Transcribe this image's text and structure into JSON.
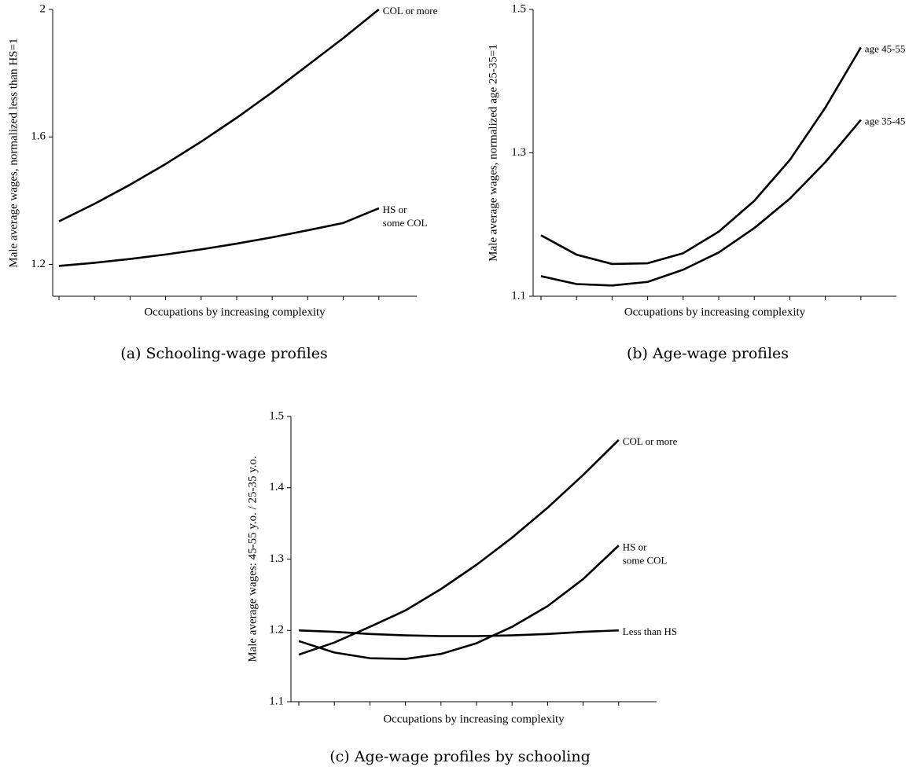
{
  "chart_data": [
    {
      "type": "line",
      "caption": "(a) Schooling-wage profiles",
      "x_label": "Occupations by increasing complexity",
      "y_label": "Male average wages, normalized less than HS=1",
      "categories": [
        null,
        null,
        null,
        null,
        null,
        null,
        null,
        null,
        null,
        null
      ],
      "series": [
        {
          "name": "COL or more",
          "color": "#000000",
          "values": [
            1.335,
            1.39,
            1.45,
            1.515,
            1.585,
            1.66,
            1.74,
            1.825,
            1.91,
            2.0
          ]
        },
        {
          "name": "HS or\nsome COL",
          "color": "#000000",
          "values": [
            1.195,
            1.205,
            1.217,
            1.231,
            1.247,
            1.265,
            1.285,
            1.307,
            1.33,
            1.376
          ]
        }
      ],
      "ylim": [
        1.1,
        2
      ],
      "yticks": [
        1.2,
        1.6,
        2
      ]
    },
    {
      "type": "line",
      "caption": "(b) Age-wage profiles",
      "x_label": "Occupations by increasing complexity",
      "y_label": "Male average wages, normalized age 25-35=1",
      "categories": [
        null,
        null,
        null,
        null,
        null,
        null,
        null,
        null,
        null,
        null
      ],
      "series": [
        {
          "name": "age 45-55",
          "color": "#000000",
          "values": [
            1.185,
            1.158,
            1.145,
            1.146,
            1.16,
            1.19,
            1.233,
            1.29,
            1.363,
            1.447
          ]
        },
        {
          "name": "age 35-45",
          "color": "#000000",
          "values": [
            1.128,
            1.117,
            1.115,
            1.12,
            1.137,
            1.161,
            1.195,
            1.236,
            1.287,
            1.346
          ]
        }
      ],
      "ylim": [
        1.1,
        1.5
      ],
      "yticks": [
        1.1,
        1.3,
        1.5
      ]
    },
    {
      "type": "line",
      "caption": "(c) Age-wage profiles by schooling",
      "x_label": "Occupations by increasing complexity",
      "y_label": "Male average wages: 45-55 y.o. / 25-35 y.o.",
      "categories": [
        null,
        null,
        null,
        null,
        null,
        null,
        null,
        null,
        null,
        null
      ],
      "series": [
        {
          "name": "COL or more",
          "color": "#000000",
          "values": [
            1.166,
            1.183,
            1.205,
            1.228,
            1.258,
            1.292,
            1.33,
            1.372,
            1.418,
            1.467
          ]
        },
        {
          "name": "HS or\nsome COL",
          "color": "#000000",
          "values": [
            1.185,
            1.169,
            1.161,
            1.16,
            1.167,
            1.182,
            1.205,
            1.234,
            1.272,
            1.319
          ]
        },
        {
          "name": "Less than HS",
          "color": "#000000",
          "values": [
            1.2,
            1.198,
            1.195,
            1.193,
            1.192,
            1.192,
            1.193,
            1.195,
            1.198,
            1.2
          ]
        }
      ],
      "ylim": [
        1.1,
        1.5
      ],
      "yticks": [
        1.1,
        1.2,
        1.3,
        1.4,
        1.5
      ]
    }
  ]
}
